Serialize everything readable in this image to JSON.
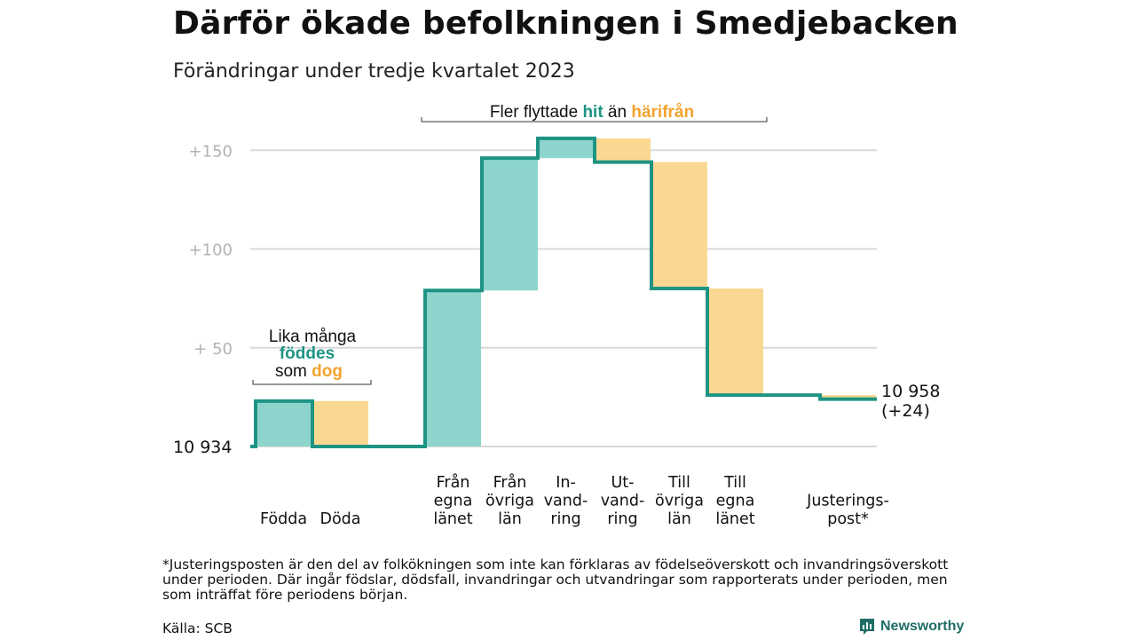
{
  "header": {
    "title": "Därför ökade befolkningen i Smedjebacken",
    "subtitle": "Förändringar under tredje kvartalet 2023"
  },
  "annotations": {
    "migration": {
      "prefix": "Fler flyttade ",
      "in": "hit",
      "mid": " än ",
      "out": "härifrån"
    },
    "natural": {
      "line1": "Lika många",
      "born": "föddes",
      "som": "som ",
      "died": "dog"
    }
  },
  "footer": {
    "footnote": "*Justeringsposten är den del av folkökningen som inte kan förklaras av födelseöverskott och invandringsöverskott under perioden. Där ingår födslar, dödsfall, invandringar och utvandringar som rapporterats under perioden, men som inträffat före periodens början.",
    "source": "Källa: SCB",
    "brand": "Newsworthy"
  },
  "colors": {
    "increase": "#8dd5cc",
    "decrease": "#fad892",
    "line": "#1e9484",
    "accent_in": "#1e9484",
    "accent_out": "#f2a32e",
    "grid": "#d9d9d9",
    "tick": "#b3b3b3"
  },
  "chart_data": {
    "type": "waterfall",
    "start_label": "10  934",
    "start_value": 0,
    "steps": [
      {
        "label": "Födda",
        "value": 23
      },
      {
        "label": "Döda",
        "value": -23
      },
      {
        "label": "Från egna länet",
        "value": 79
      },
      {
        "label": "Från övriga län",
        "value": 67
      },
      {
        "label": "In-vandring",
        "value": 10
      },
      {
        "label": "Ut-vandring",
        "value": -12
      },
      {
        "label": "Till övriga län",
        "value": -64
      },
      {
        "label": "Till egna länet",
        "value": -54
      },
      {
        "label": "Justerings-post*",
        "value": -2
      }
    ],
    "x_labels": [
      [
        "Födda"
      ],
      [
        "Döda"
      ],
      [
        "Från",
        "egna",
        "länet"
      ],
      [
        "Från",
        "övriga",
        "län"
      ],
      [
        "In-",
        "vand-",
        "ring"
      ],
      [
        "Ut-",
        "vand-",
        "ring"
      ],
      [
        "Till",
        "övriga",
        "län"
      ],
      [
        "Till",
        "egna",
        "länet"
      ],
      [
        "Justerings-",
        "post*"
      ]
    ],
    "end_label": [
      "10 958",
      "(+24)"
    ],
    "y_ticks": [
      {
        "value": 50,
        "label": "+  50"
      },
      {
        "value": 100,
        "label": "+100"
      },
      {
        "value": 150,
        "label": "+150"
      }
    ],
    "ylim": [
      0,
      160
    ]
  }
}
